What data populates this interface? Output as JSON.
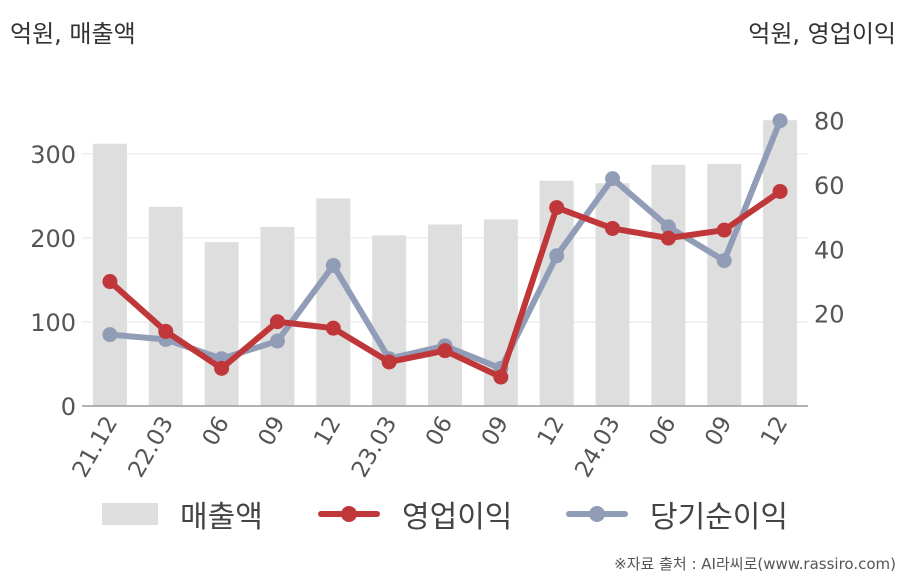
{
  "header": {
    "left_unit": "억원, 매출액",
    "right_unit": "억원, 영업이익"
  },
  "source": "※자료 출처 : AI라씨로(www.rassiro.com)",
  "colors": {
    "revenue": "#dedede",
    "operating_profit": "#c0373a",
    "net_income": "#919db7"
  },
  "chart_data": {
    "type": "bar",
    "categories": [
      "21.12",
      "22.03",
      "06",
      "09",
      "12",
      "23.03",
      "06",
      "09",
      "12",
      "24.03",
      "06",
      "09",
      "12"
    ],
    "series": [
      {
        "name": "매출액",
        "type": "bar",
        "axis": "left",
        "values": [
          312,
          237,
          195,
          213,
          247,
          203,
          216,
          222,
          268,
          265,
          287,
          288,
          340
        ]
      },
      {
        "name": "영업이익",
        "type": "line",
        "axis": "right",
        "values": [
          30,
          14.5,
          3,
          17.5,
          15.5,
          5,
          8.5,
          0.3,
          53,
          46.5,
          43.5,
          46,
          58
        ]
      },
      {
        "name": "당기순이익",
        "type": "line",
        "axis": "right",
        "values": [
          13.5,
          12,
          6,
          11.5,
          35,
          6,
          10,
          3,
          38,
          62,
          47,
          36.5,
          80
        ]
      }
    ],
    "y_left": {
      "min": 0,
      "max": 370,
      "ticks": [
        0,
        100,
        200,
        300
      ]
    },
    "y_right": {
      "min": -8.7,
      "max": 88,
      "ticks": [
        20,
        40,
        60,
        80
      ]
    },
    "grid": true,
    "legend_position": "bottom"
  }
}
